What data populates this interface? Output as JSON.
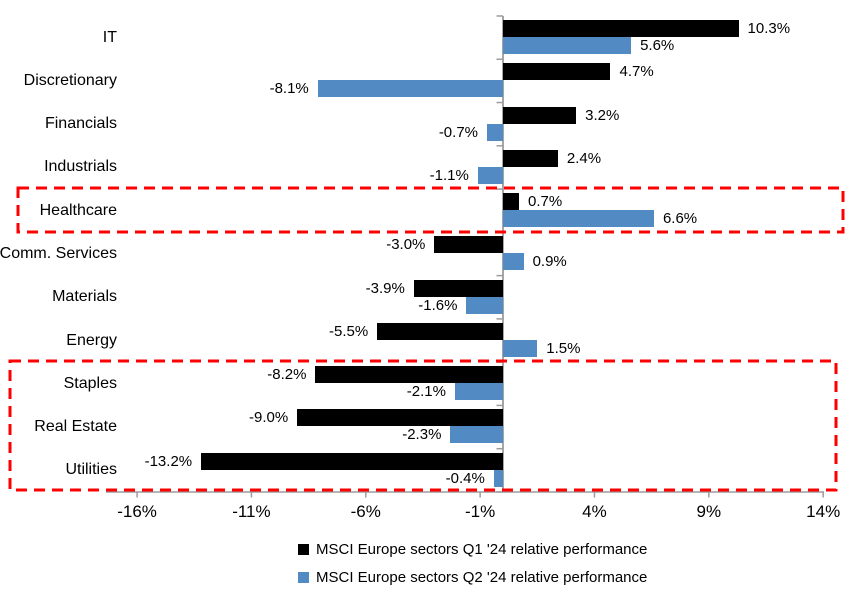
{
  "chart_data": {
    "type": "bar",
    "orientation": "horizontal",
    "title": "",
    "categories": [
      "IT",
      "Discretionary",
      "Financials",
      "Industrials",
      "Healthcare",
      "Comm. Services",
      "Materials",
      "Energy",
      "Staples",
      "Real Estate",
      "Utilities"
    ],
    "series": [
      {
        "name": "MSCI Europe sectors Q1 '24 relative performance",
        "color": "#000000",
        "values": [
          10.3,
          4.7,
          3.2,
          2.4,
          0.7,
          -3.0,
          -3.9,
          -5.5,
          -8.2,
          -9.0,
          -13.2
        ],
        "labels": [
          "10.3%",
          "4.7%",
          "3.2%",
          "2.4%",
          "0.7%",
          "-3.0%",
          "-3.9%",
          "-5.5%",
          "-8.2%",
          "-9.0%",
          "-13.2%"
        ]
      },
      {
        "name": "MSCI Europe sectors Q2 '24 relative performance",
        "color": "#528AC4",
        "values": [
          5.6,
          -8.1,
          -0.7,
          -1.1,
          6.6,
          0.9,
          -1.6,
          1.5,
          -2.1,
          -2.3,
          -0.4
        ],
        "labels": [
          "5.6%",
          "-8.1%",
          "-0.7%",
          "-1.1%",
          "6.6%",
          "0.9%",
          "-1.6%",
          "1.5%",
          "-2.1%",
          "-2.3%",
          "-0.4%"
        ]
      }
    ],
    "x_axis": {
      "min": -16,
      "max": 14,
      "tick_values": [
        -16,
        -11,
        -6,
        -1,
        4,
        9,
        14
      ],
      "tick_labels": [
        "-16%",
        "-11%",
        "-6%",
        "-1%",
        "4%",
        "9%",
        "14%"
      ]
    },
    "grid": false,
    "legend_position": "bottom",
    "axis_color": "#9c9c9c",
    "highlight_color": "#ff0000",
    "highlights": [
      {
        "categories": [
          "Healthcare"
        ]
      },
      {
        "categories": [
          "Staples",
          "Real Estate",
          "Utilities"
        ]
      }
    ]
  }
}
